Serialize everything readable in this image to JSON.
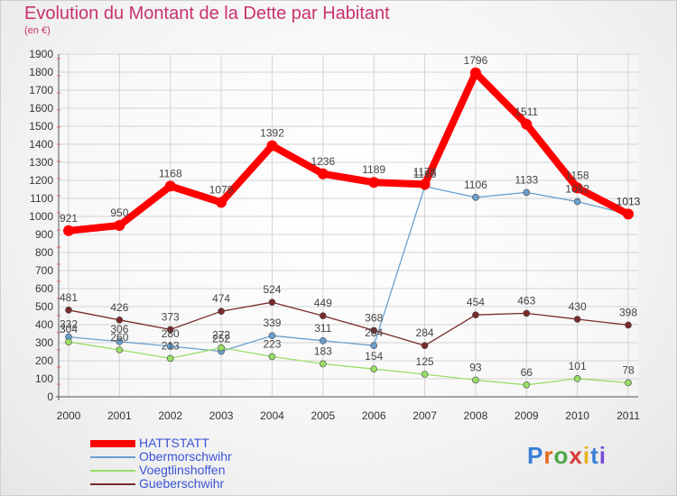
{
  "chart_data": {
    "type": "line",
    "title": "Evolution du Montant de la Dette par Habitant",
    "subtitle": "(en €)",
    "x": [
      "2000",
      "2001",
      "2002",
      "2003",
      "2004",
      "2005",
      "2006",
      "2007",
      "2008",
      "2009",
      "2010",
      "2011"
    ],
    "ylim": [
      0,
      1900
    ],
    "yticks": [
      0,
      100,
      200,
      300,
      400,
      500,
      600,
      700,
      800,
      900,
      1000,
      1100,
      1200,
      1300,
      1400,
      1500,
      1600,
      1700,
      1800,
      1900
    ],
    "grid": true,
    "legend": "bottom-left",
    "series": [
      {
        "name": "HATTSTATT",
        "color": "#ff0000",
        "values": [
          921,
          950,
          1168,
          1078,
          1392,
          1236,
          1189,
          1178,
          1796,
          1511,
          1158,
          1013
        ]
      },
      {
        "name": "Obermorschwihr",
        "color": "#6aa0cf",
        "values": [
          332,
          306,
          280,
          252,
          339,
          311,
          284,
          1166,
          1106,
          1133,
          1082,
          1013
        ]
      },
      {
        "name": "Voegtlinshoffen",
        "color": "#99dd66",
        "values": [
          304,
          260,
          213,
          272,
          223,
          183,
          154,
          125,
          93,
          66,
          101,
          78
        ]
      },
      {
        "name": "Gueberschwihr",
        "color": "#7a2a2a",
        "values": [
          481,
          426,
          373,
          474,
          524,
          449,
          368,
          284,
          454,
          463,
          430,
          398
        ]
      }
    ]
  },
  "logo": {
    "text": "Proxiti"
  }
}
